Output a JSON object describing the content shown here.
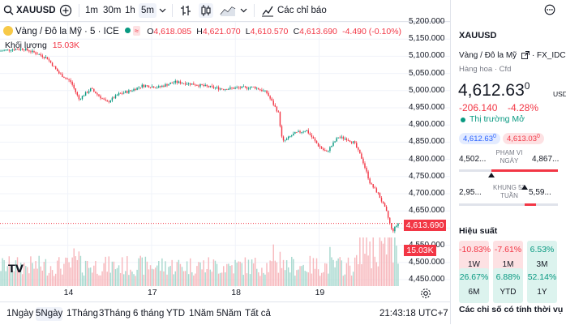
{
  "toolbar": {
    "symbol": "XAUUSD",
    "intervals": [
      "1m",
      "30m",
      "1h",
      "5m"
    ],
    "active_interval": "5m",
    "indicators_label": "Các chỉ báo"
  },
  "legend": {
    "name": "Vàng / Đô la Mỹ · 5 · ICE",
    "o_label": "O",
    "o": "4,618.085",
    "h_label": "H",
    "h": "4,621.070",
    "l_label": "L",
    "l": "4,610.570",
    "c_label": "C",
    "c": "4,613.690",
    "change": "-4.490 (-0.10%)",
    "volume_label": "Khối lượng",
    "volume_value": "15.03K"
  },
  "price_axis": {
    "ticks": [
      "5,200.000",
      "5,150.000",
      "5,100.000",
      "5,050.000",
      "5,000.000",
      "4,950.000",
      "4,900.000",
      "4,850.000",
      "4,800.000",
      "4,750.000",
      "4,700.000",
      "4,650.000",
      "4,600.000",
      "4,550.000",
      "4,500.000",
      "4,450.000"
    ],
    "current_price_tag": "4,613.690",
    "volume_tag": "15.03K"
  },
  "time_axis": {
    "ticks": [
      "14",
      "17",
      "18",
      "19"
    ]
  },
  "chart_data": {
    "type": "candlestick",
    "symbol": "XAUUSD",
    "interval": "5m",
    "y_range": [
      4450,
      5200
    ],
    "x_ticks": [
      "14",
      "17",
      "18",
      "19"
    ],
    "price_path": [
      [
        0,
        5115
      ],
      [
        0.03,
        5120
      ],
      [
        0.06,
        5122
      ],
      [
        0.09,
        5110
      ],
      [
        0.12,
        5095
      ],
      [
        0.15,
        5050
      ],
      [
        0.18,
        5025
      ],
      [
        0.2,
        4975
      ],
      [
        0.23,
        5005
      ],
      [
        0.27,
        4965
      ],
      [
        0.3,
        4990
      ],
      [
        0.33,
        5000
      ],
      [
        0.36,
        5015
      ],
      [
        0.4,
        5010
      ],
      [
        0.44,
        5025
      ],
      [
        0.48,
        5020
      ],
      [
        0.52,
        5012
      ],
      [
        0.56,
        5005
      ],
      [
        0.6,
        5008
      ],
      [
        0.64,
        5010
      ],
      [
        0.67,
        4995
      ],
      [
        0.7,
        4935
      ],
      [
        0.71,
        4850
      ],
      [
        0.74,
        4875
      ],
      [
        0.77,
        4885
      ],
      [
        0.8,
        4840
      ],
      [
        0.82,
        4820
      ],
      [
        0.85,
        4865
      ],
      [
        0.87,
        4860
      ],
      [
        0.89,
        4848
      ],
      [
        0.91,
        4800
      ],
      [
        0.93,
        4730
      ],
      [
        0.95,
        4700
      ],
      [
        0.97,
        4650
      ],
      [
        0.985,
        4590
      ],
      [
        1.0,
        4613.69
      ]
    ],
    "last": {
      "open": 4618.085,
      "high": 4621.07,
      "low": 4610.57,
      "close": 4613.69,
      "change": -4.49,
      "change_pct": -0.1
    },
    "volume_last": "15.03K"
  },
  "bottom": {
    "ranges": [
      "1Ngày",
      "5Ngày",
      "1Tháng",
      "3Tháng",
      "6 tháng",
      "YTD",
      "1Năm",
      "5Năm",
      "Tất cả"
    ],
    "active_range": "5Ngày",
    "clock": "21:43:18 UTC+7"
  },
  "panel": {
    "symbol": "XAUUSD",
    "name": "Vàng / Đô la Mỹ",
    "exchange": "FX_IDC",
    "category": "Hàng hoa · Cfd",
    "price": "4,612.63",
    "price_sup": "0",
    "currency": "USD",
    "change": "-206.140",
    "change_pct": "-4.28%",
    "market_status": "Thị trường Mở",
    "bid": "4,612.63",
    "bid_sup": "0",
    "ask": "4,613.03",
    "ask_sup": "0",
    "day_low": "4,502...",
    "day_high": "4,867...",
    "day_range_label": "PHẠM VI NGÀY",
    "y52_low": "2,95...",
    "y52_high": "5,59...",
    "y52_range_label": "KHUNG 52 TUẦN",
    "day_marker": 0.33,
    "y52_marker": 0.66,
    "performance_title": "Hiệu suất",
    "performance": [
      {
        "value": "-10.83%",
        "label": "1W",
        "sign": "neg"
      },
      {
        "value": "-7.61%",
        "label": "1M",
        "sign": "neg"
      },
      {
        "value": "6.53%",
        "label": "3M",
        "sign": "pos"
      },
      {
        "value": "26.67%",
        "label": "6M",
        "sign": "pos"
      },
      {
        "value": "6.88%",
        "label": "YTD",
        "sign": "pos"
      },
      {
        "value": "52.14%",
        "label": "1Y",
        "sign": "pos"
      }
    ],
    "seasonal_title": "Các chỉ số có tính thời vụ"
  }
}
